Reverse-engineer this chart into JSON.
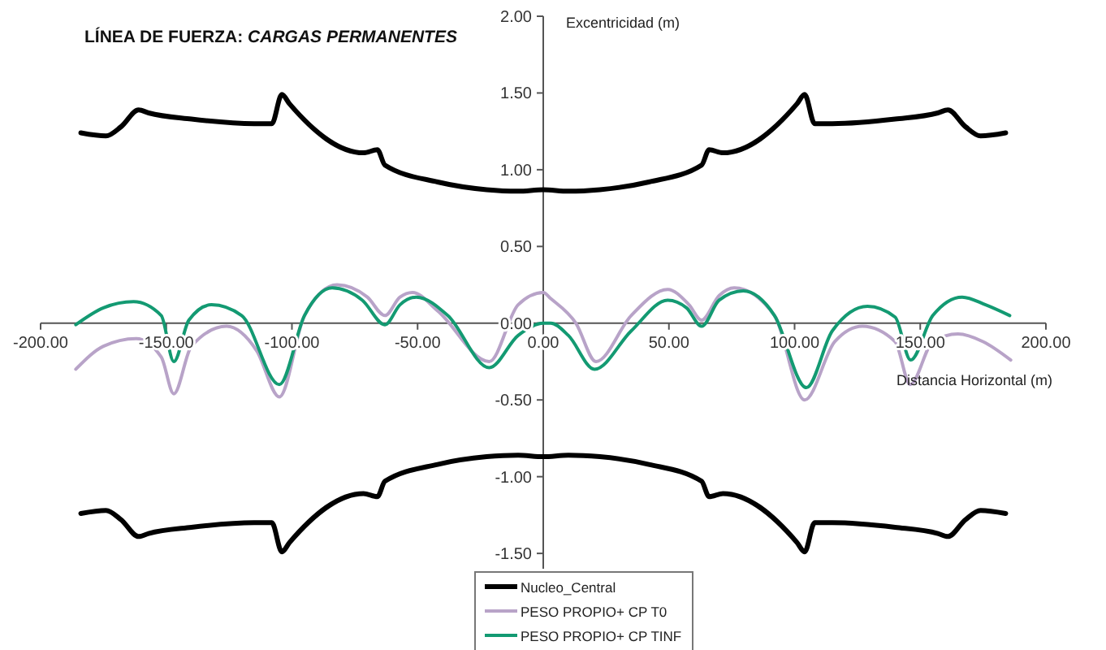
{
  "chart_data": {
    "type": "line",
    "title": "LÍNEA DE FUERZA: CARGAS PERMANENTES",
    "xlabel": "Distancia Horizontal (m)",
    "ylabel": "Excentricidad (m)",
    "xlim": [
      -200,
      200
    ],
    "ylim": [
      -1.6,
      2.0
    ],
    "xticks": [
      {
        "value": -200,
        "label": "-200.00"
      },
      {
        "value": -150,
        "label": "-150.00"
      },
      {
        "value": -100,
        "label": "-100.00"
      },
      {
        "value": -50,
        "label": "-50.00"
      },
      {
        "value": 0,
        "label": "0.00"
      },
      {
        "value": 50,
        "label": "50.00"
      },
      {
        "value": 100,
        "label": "100.00"
      },
      {
        "value": 150,
        "label": "150.00"
      },
      {
        "value": 200,
        "label": "200.00"
      }
    ],
    "yticks": [
      {
        "value": -1.5,
        "label": "-1.50"
      },
      {
        "value": -1,
        "label": "-1.00"
      },
      {
        "value": -0.5,
        "label": "-0.50"
      },
      {
        "value": 0,
        "label": "0.00"
      },
      {
        "value": 0.5,
        "label": "0.50"
      },
      {
        "value": 1,
        "label": "1.00"
      },
      {
        "value": 1.5,
        "label": "1.50"
      },
      {
        "value": 2,
        "label": "2.00"
      }
    ],
    "grid": false,
    "legend": "bottom",
    "marker": "none",
    "line_style": "solid",
    "series": [
      {
        "name": "Nucleo_Central",
        "color": "#000000",
        "x": [
          -184,
          -174,
          -168,
          -161,
          -157,
          -140,
          -115,
          -108,
          -104,
          -101,
          -71.5,
          -66,
          -63,
          -42,
          -22.5,
          -10,
          0,
          10,
          22.5,
          42,
          63,
          66,
          71.5,
          101,
          104,
          108,
          115,
          140,
          157,
          161,
          168,
          174,
          184
        ],
        "values": [
          1.24,
          1.22,
          1.28,
          1.39,
          1.37,
          1.33,
          1.3,
          1.3,
          1.49,
          1.43,
          1.11,
          1.13,
          1.03,
          0.92,
          0.87,
          0.86,
          0.87,
          0.86,
          0.87,
          0.92,
          1.03,
          1.13,
          1.11,
          1.43,
          1.49,
          1.3,
          1.3,
          1.33,
          1.37,
          1.39,
          1.28,
          1.22,
          1.24
        ]
      },
      {
        "color": "#000000",
        "x": [
          -184,
          -174,
          -168,
          -161,
          -157,
          -140,
          -115,
          -108,
          -104,
          -101,
          -71.5,
          -66,
          -63,
          -42,
          -22.5,
          -10,
          0,
          10,
          22.5,
          42,
          63,
          66,
          71.5,
          101,
          104,
          108,
          115,
          140,
          157,
          161,
          168,
          174,
          184
        ],
        "values": [
          -1.24,
          -1.22,
          -1.28,
          -1.39,
          -1.37,
          -1.33,
          -1.3,
          -1.3,
          -1.49,
          -1.43,
          -1.11,
          -1.13,
          -1.03,
          -0.92,
          -0.87,
          -0.86,
          -0.87,
          -0.86,
          -0.87,
          -0.92,
          -1.03,
          -1.13,
          -1.11,
          -1.43,
          -1.49,
          -1.3,
          -1.3,
          -1.33,
          -1.37,
          -1.39,
          -1.28,
          -1.22,
          -1.24
        ]
      },
      {
        "name": "PESO PROPIO+ CP T0",
        "color": "#b8a3c8",
        "x": [
          -186,
          -175,
          -162,
          -152,
          -147,
          -140,
          -126,
          -114,
          -105,
          -95,
          -82,
          -70,
          -63,
          -57,
          -52,
          -42,
          -21.5,
          -10,
          0,
          3,
          13,
          21,
          35,
          49.5,
          58,
          63,
          70,
          76,
          92,
          104,
          116,
          127,
          140,
          146,
          155,
          165,
          175,
          186
        ],
        "values": [
          -0.3,
          -0.15,
          -0.1,
          -0.22,
          -0.46,
          -0.15,
          -0.02,
          -0.18,
          -0.48,
          0.05,
          0.25,
          0.17,
          0.05,
          0.17,
          0.2,
          0.08,
          -0.25,
          0.12,
          0.2,
          0.16,
          0.0,
          -0.25,
          0.05,
          0.22,
          0.12,
          0.02,
          0.18,
          0.23,
          0.05,
          -0.5,
          -0.12,
          -0.02,
          -0.12,
          -0.4,
          -0.12,
          -0.07,
          -0.12,
          -0.24
        ]
      },
      {
        "name": "PESO PROPIO+ CP TINF",
        "color": "#139a72",
        "x": [
          -186,
          -175,
          -163,
          -152,
          -147,
          -141,
          -132,
          -120,
          -105,
          -95,
          -84,
          -72,
          -63,
          -57,
          -50.5,
          -38,
          -21.5,
          -10,
          0,
          3,
          10,
          20.4,
          35,
          49.5,
          57,
          63,
          70,
          79.6,
          92,
          104.7,
          115,
          129,
          140,
          146.2,
          155,
          166.7,
          176,
          185.6
        ],
        "values": [
          -0.01,
          0.1,
          0.14,
          0.05,
          -0.25,
          0.02,
          0.12,
          0.05,
          -0.4,
          0.05,
          0.23,
          0.15,
          -0.01,
          0.12,
          0.17,
          0.05,
          -0.29,
          -0.08,
          0.0,
          0.0,
          -0.08,
          -0.3,
          -0.05,
          0.15,
          0.1,
          -0.02,
          0.15,
          0.21,
          0.05,
          -0.42,
          -0.05,
          0.11,
          0.04,
          -0.24,
          0.05,
          0.17,
          0.12,
          0.05
        ]
      }
    ]
  }
}
